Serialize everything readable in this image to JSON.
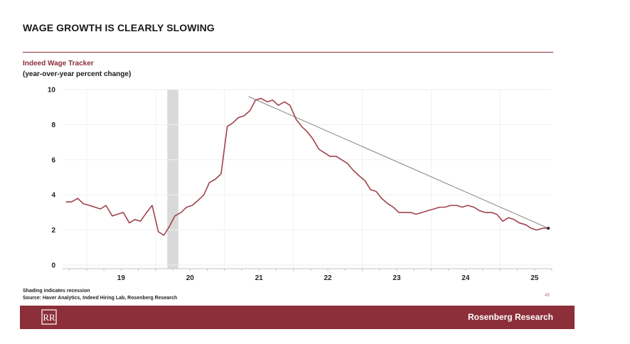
{
  "header": {
    "title": "WAGE GROWTH IS CLEARLY SLOWING",
    "subtitle": "Indeed Wage Tracker",
    "unit_note": "(year-over-year percent change)"
  },
  "footer": {
    "note_shading": "Shading indicates recession",
    "note_source": "Source: Haver Analytics, Indeed Hiring Lab, Rosenberg Research",
    "page_number": "49",
    "brand": "Rosenberg Research",
    "logo_text": "RR"
  },
  "colors": {
    "accent": "#8c2f3a",
    "series_line": "#a0424d",
    "trend_line": "#8a8a8a",
    "recession_band": "#d9d9d9"
  },
  "chart_data": {
    "type": "line",
    "title": "Indeed Wage Tracker",
    "ylabel": "(year-over-year percent change)",
    "xlabel": "",
    "ylim": [
      0,
      10
    ],
    "xlim": [
      2018.65,
      2025.75
    ],
    "yticks": [
      0,
      2,
      4,
      6,
      8,
      10
    ],
    "xticks": [
      {
        "label": "19",
        "value": 2019.5
      },
      {
        "label": "20",
        "value": 2020.5
      },
      {
        "label": "21",
        "value": 2021.5
      },
      {
        "label": "22",
        "value": 2022.5
      },
      {
        "label": "23",
        "value": 2023.5
      },
      {
        "label": "24",
        "value": 2024.5
      },
      {
        "label": "25",
        "value": 2025.5
      }
    ],
    "grid": true,
    "recession": {
      "start": 2020.17,
      "end": 2020.33
    },
    "series": [
      {
        "x": [
          2018.7,
          2018.78,
          2018.87,
          2018.95,
          2019.04,
          2019.12,
          2019.2,
          2019.28,
          2019.37,
          2019.45,
          2019.53,
          2019.62,
          2019.7,
          2019.78,
          2019.87,
          2019.95,
          2020.04,
          2020.12,
          2020.2,
          2020.28,
          2020.37,
          2020.45,
          2020.53,
          2020.62,
          2020.7,
          2020.78,
          2020.87,
          2020.95,
          2021.04,
          2021.12,
          2021.2,
          2021.28,
          2021.37,
          2021.45,
          2021.53,
          2021.62,
          2021.7,
          2021.78,
          2021.87,
          2021.95,
          2022.04,
          2022.12,
          2022.2,
          2022.28,
          2022.37,
          2022.45,
          2022.53,
          2022.62,
          2022.7,
          2022.78,
          2022.87,
          2022.95,
          2023.04,
          2023.12,
          2023.2,
          2023.28,
          2023.37,
          2023.45,
          2023.53,
          2023.62,
          2023.7,
          2023.78,
          2023.87,
          2023.95,
          2024.04,
          2024.12,
          2024.2,
          2024.28,
          2024.37,
          2024.45,
          2024.53,
          2024.62,
          2024.7,
          2024.78,
          2024.87,
          2024.95,
          2025.04,
          2025.12,
          2025.2,
          2025.28,
          2025.37,
          2025.45,
          2025.53,
          2025.62,
          2025.7
        ],
        "values": [
          3.6,
          3.6,
          3.8,
          3.5,
          3.4,
          3.3,
          3.2,
          3.4,
          2.8,
          2.9,
          3.0,
          2.4,
          2.6,
          2.5,
          3.0,
          3.4,
          1.9,
          1.7,
          2.2,
          2.8,
          3.0,
          3.3,
          3.4,
          3.7,
          4.0,
          4.7,
          4.9,
          5.2,
          7.9,
          8.1,
          8.4,
          8.5,
          8.8,
          9.4,
          9.5,
          9.3,
          9.4,
          9.1,
          9.3,
          9.1,
          8.3,
          7.9,
          7.6,
          7.2,
          6.6,
          6.4,
          6.2,
          6.2,
          6.0,
          5.8,
          5.4,
          5.1,
          4.8,
          4.3,
          4.2,
          3.8,
          3.5,
          3.3,
          3.0,
          3.0,
          3.0,
          2.9,
          3.0,
          3.1,
          3.2,
          3.3,
          3.3,
          3.4,
          3.4,
          3.3,
          3.4,
          3.3,
          3.1,
          3.0,
          3.0,
          2.9,
          2.5,
          2.7,
          2.6,
          2.4,
          2.3,
          2.1,
          2.0,
          2.1,
          2.1
        ]
      }
    ],
    "trend_line": {
      "x": [
        2021.35,
        2025.7
      ],
      "values": [
        9.6,
        2.1
      ]
    }
  }
}
